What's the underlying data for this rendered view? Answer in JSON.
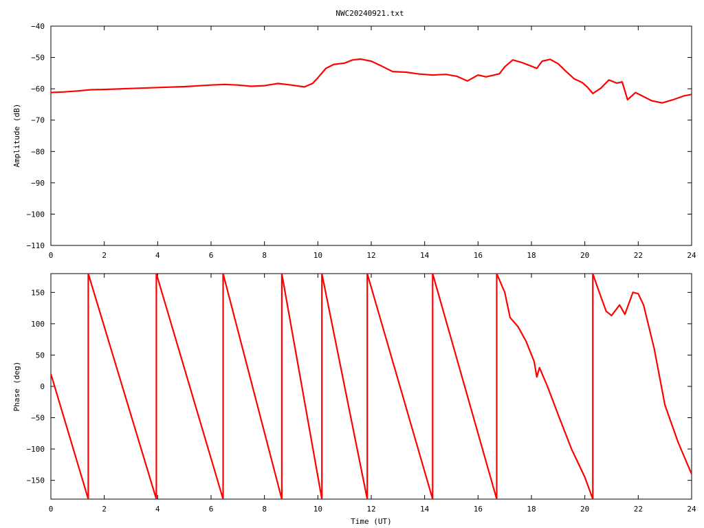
{
  "title": "NWC20240921.txt",
  "colors": {
    "series": "#ff0000",
    "axis": "#000000",
    "background": "#ffffff"
  },
  "chart_data": [
    {
      "type": "line",
      "title": "NWC20240921.txt",
      "xlabel": "",
      "ylabel": "Amplitude (dB)",
      "xlim": [
        0,
        24
      ],
      "ylim": [
        -110,
        -40
      ],
      "xticks": [
        "0",
        "2",
        "4",
        "6",
        "8",
        "10",
        "12",
        "14",
        "16",
        "18",
        "20",
        "22",
        "24"
      ],
      "yticks": [
        "-40",
        "-50",
        "-60",
        "-70",
        "-80",
        "-90",
        "-100",
        "-110"
      ],
      "grid": false,
      "series": [
        {
          "x": [
            0,
            0.5,
            1,
            1.5,
            2,
            3,
            4,
            5,
            6,
            6.5,
            7,
            7.5,
            8,
            8.5,
            9,
            9.5,
            9.8,
            10,
            10.3,
            10.6,
            11,
            11.3,
            11.6,
            12,
            12.4,
            12.8,
            13.3,
            13.8,
            14.3,
            14.8,
            15.2,
            15.6,
            16,
            16.3,
            16.8,
            17,
            17.3,
            17.6,
            18,
            18.2,
            18.4,
            18.7,
            19,
            19.3,
            19.6,
            19.9,
            20.1,
            20.3,
            20.6,
            20.9,
            21.2,
            21.4,
            21.6,
            21.9,
            22.2,
            22.5,
            22.9,
            23.3,
            23.7,
            24
          ],
          "y": [
            -61.2,
            -61,
            -60.7,
            -60.3,
            -60.2,
            -59.9,
            -59.6,
            -59.3,
            -58.8,
            -58.6,
            -58.8,
            -59.2,
            -59,
            -58.3,
            -58.8,
            -59.4,
            -58.3,
            -56.5,
            -53.5,
            -52.2,
            -51.8,
            -50.8,
            -50.5,
            -51.2,
            -52.8,
            -54.5,
            -54.7,
            -55.3,
            -55.6,
            -55.4,
            -56,
            -57.5,
            -55.6,
            -56.2,
            -55.2,
            -53,
            -50.8,
            -51.5,
            -52.8,
            -53.5,
            -51.2,
            -50.6,
            -52,
            -54.5,
            -56.8,
            -58,
            -59.5,
            -61.5,
            -59.8,
            -57.2,
            -58.2,
            -57.8,
            -63.5,
            -61.2,
            -62.5,
            -63.8,
            -64.5,
            -63.5,
            -62.3,
            -61.8
          ]
        }
      ]
    },
    {
      "type": "line",
      "title": "",
      "xlabel": "Time (UT)",
      "ylabel": "Phase (deg)",
      "xlim": [
        0,
        24
      ],
      "ylim": [
        -180,
        180
      ],
      "xticks": [
        "0",
        "2",
        "4",
        "6",
        "8",
        "10",
        "12",
        "14",
        "16",
        "18",
        "20",
        "22",
        "24"
      ],
      "yticks": [
        "150",
        "100",
        "50",
        "0",
        "-50",
        "-100",
        "-150"
      ],
      "grid": false,
      "series": [
        {
          "x": [
            0,
            1.4,
            1.4,
            3.95,
            3.95,
            6.45,
            6.45,
            8.65,
            8.65,
            10.15,
            10.15,
            11.85,
            11.85,
            14.3,
            14.3,
            16.7,
            16.7,
            17,
            17.2,
            17.5,
            17.8,
            18.1,
            18.2,
            18.3,
            18.6,
            19,
            19.5,
            20,
            20.3,
            20.3,
            20.5,
            20.8,
            21,
            21.3,
            21.5,
            21.8,
            22,
            22.2,
            22.6,
            23,
            23.5,
            24
          ],
          "y": [
            20,
            -180,
            180,
            -180,
            180,
            -180,
            180,
            -180,
            180,
            -180,
            180,
            -180,
            180,
            -180,
            180,
            -180,
            180,
            150,
            110,
            95,
            72,
            40,
            15,
            30,
            0,
            -45,
            -100,
            -145,
            -180,
            180,
            155,
            120,
            113,
            130,
            115,
            150,
            148,
            130,
            60,
            -30,
            -90,
            -140
          ]
        }
      ]
    }
  ]
}
